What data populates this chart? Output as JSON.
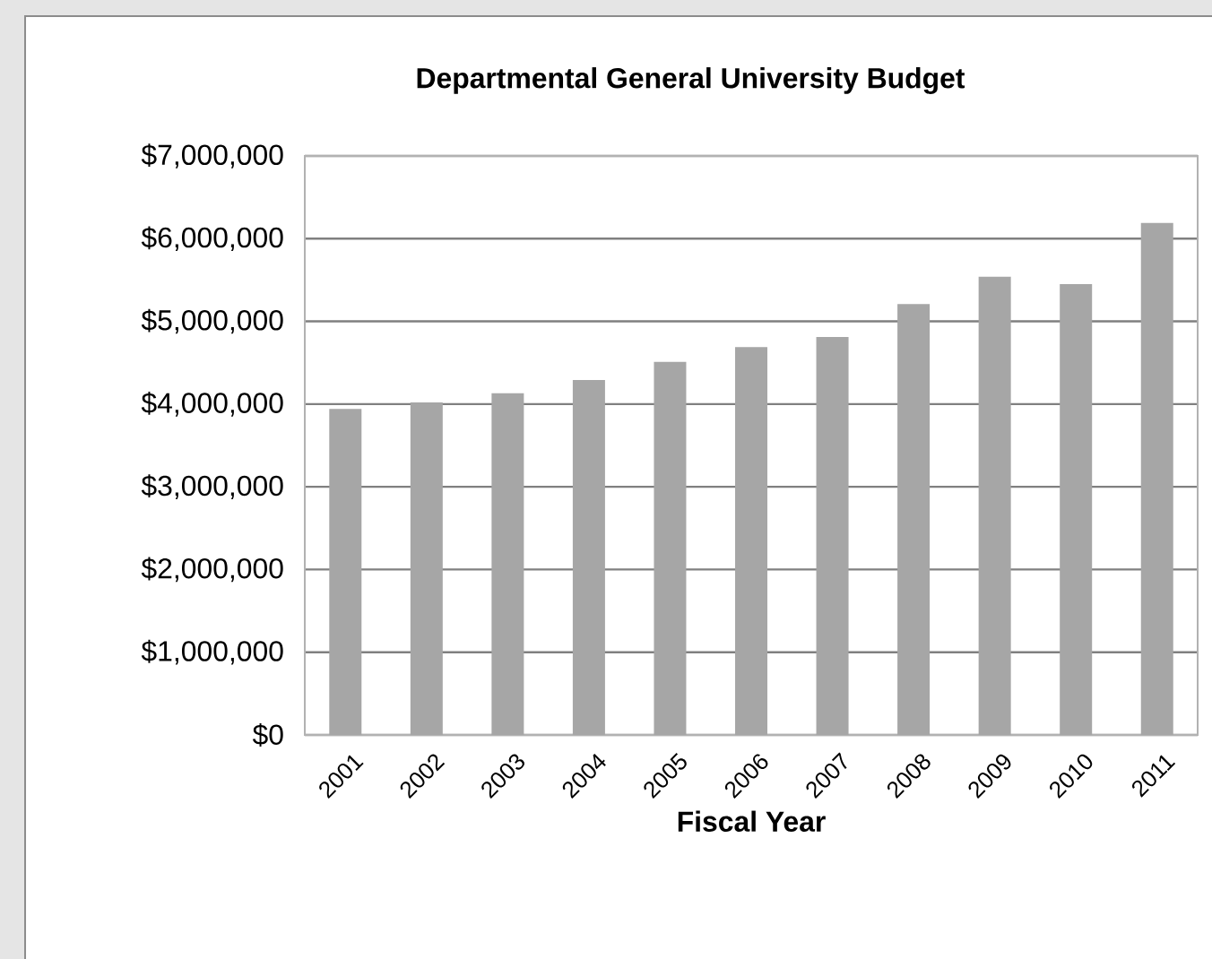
{
  "chart_data": {
    "type": "bar",
    "title": "Departmental General University Budget",
    "xlabel": "Fiscal Year",
    "categories": [
      "2001",
      "2002",
      "2003",
      "2004",
      "2005",
      "2006",
      "2007",
      "2008",
      "2009",
      "2010",
      "2011"
    ],
    "values": [
      3940000,
      4020000,
      4130000,
      4290000,
      4510000,
      4690000,
      4810000,
      5210000,
      5540000,
      5450000,
      6190000
    ],
    "color": "#a6a6a6",
    "ylim": [
      0,
      7000000
    ],
    "yticks": [
      {
        "value": 0,
        "label": "$0"
      },
      {
        "value": 1000000,
        "label": "$1,000,000"
      },
      {
        "value": 2000000,
        "label": "$2,000,000"
      },
      {
        "value": 3000000,
        "label": "$3,000,000"
      },
      {
        "value": 4000000,
        "label": "$4,000,000"
      },
      {
        "value": 5000000,
        "label": "$5,000,000"
      },
      {
        "value": 6000000,
        "label": "$6,000,000"
      },
      {
        "value": 7000000,
        "label": "$7,000,000"
      }
    ],
    "grid": "y"
  }
}
